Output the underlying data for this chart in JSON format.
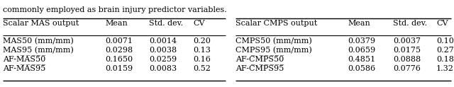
{
  "caption": "commonly employed as brain injury predictor variables.",
  "left_header": [
    "Scalar MAS output",
    "Mean",
    "Std. dev.",
    "CV"
  ],
  "right_header": [
    "Scalar CMPS output",
    "Mean",
    "Std. dev.",
    "CV"
  ],
  "left_rows": [
    [
      "MAS50 (mm/mm)",
      "0.0071",
      "0.0014",
      "0.20"
    ],
    [
      "MAS95 (mm/mm)",
      "0.0298",
      "0.0038",
      "0.13"
    ],
    [
      "AF-MAS50_ol",
      "0.1650",
      "0.0259",
      "0.16"
    ],
    [
      "AF-MAS95_ol",
      "0.0159",
      "0.0083",
      "0.52"
    ]
  ],
  "right_rows": [
    [
      "CMPS50 (mm/mm)",
      "0.0379",
      "0.0037",
      "0.10"
    ],
    [
      "CMPS95 (mm/mm)",
      "0.0659",
      "0.0175",
      "0.27"
    ],
    [
      "AF-CMPS50_ol",
      "0.4851",
      "0.0888",
      "0.18"
    ],
    [
      "AF-CMPS95_ol",
      "0.0586",
      "0.0776",
      "1.32"
    ]
  ],
  "left_overline": [
    false,
    false,
    true,
    true
  ],
  "right_overline": [
    false,
    false,
    true,
    true
  ],
  "figsize": [
    6.4,
    1.23
  ],
  "dpi": 100,
  "fontsize": 8.0,
  "font_family": "DejaVu Serif"
}
